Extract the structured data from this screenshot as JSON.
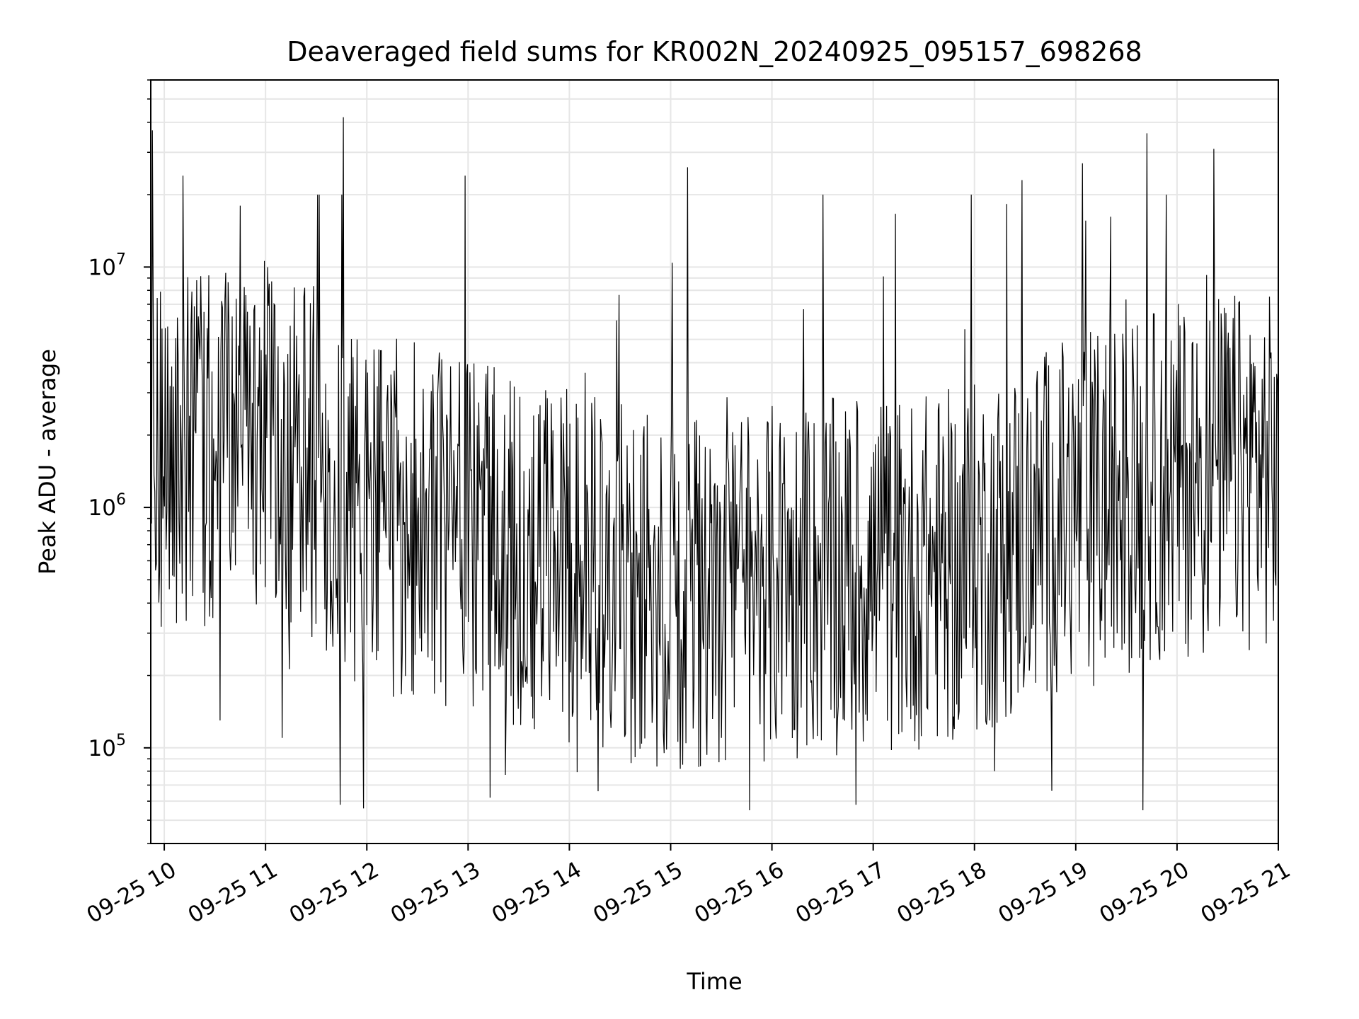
{
  "chart_data": {
    "type": "line",
    "title": "Deaveraged field sums for KR002N_20240925_095157_698268",
    "xlabel": "Time",
    "ylabel": "Peak ADU - average",
    "yscale": "log",
    "ylim": [
      40000,
      60000000
    ],
    "xlim": [
      "2024-09-25 09:52",
      "2024-09-25 21:00"
    ],
    "x_ticks": [
      "09-25 10",
      "09-25 11",
      "09-25 12",
      "09-25 13",
      "09-25 14",
      "09-25 15",
      "09-25 16",
      "09-25 17",
      "09-25 18",
      "09-25 19",
      "09-25 20",
      "09-25 21"
    ],
    "y_ticks": [
      {
        "base": "10",
        "exp": "5",
        "value": 100000
      },
      {
        "base": "10",
        "exp": "6",
        "value": 1000000
      },
      {
        "base": "10",
        "exp": "7",
        "value": 10000000
      }
    ],
    "grid": true,
    "line_color": "#000000",
    "grid_color": "#e6e6e6",
    "series": [
      {
        "name": "",
        "x": [
          "2024-09-25 09:52",
          "2024-09-25 09:53",
          "2024-09-25 09:59",
          "2024-09-25 10:11",
          "2024-09-25 10:33",
          "2024-09-25 10:37",
          "2024-09-25 10:45",
          "2024-09-25 10:58",
          "2024-09-25 11:10",
          "2024-09-25 11:25",
          "2024-09-25 11:44",
          "2024-09-25 11:46",
          "2024-09-25 11:58",
          "2024-09-25 12:10",
          "2024-09-25 12:30",
          "2024-09-25 12:58",
          "2024-09-25 13:13",
          "2024-09-25 13:43",
          "2024-09-25 14:17",
          "2024-09-25 14:28",
          "2024-09-25 15:10",
          "2024-09-25 15:30",
          "2024-09-25 15:50",
          "2024-09-25 16:18",
          "2024-09-25 16:30",
          "2024-09-25 16:50",
          "2024-09-25 17:28",
          "2024-09-25 17:58",
          "2024-09-25 18:12",
          "2024-09-25 18:28",
          "2024-09-25 19:04",
          "2024-09-25 19:25",
          "2024-09-25 19:40",
          "2024-09-25 19:42",
          "2024-09-25 20:10",
          "2024-09-25 20:22",
          "2024-09-25 20:45",
          "2024-09-25 21:00"
        ],
        "y": [
          1500000,
          37000000,
          900000,
          24000000,
          130000,
          3000000,
          18000000,
          1200000,
          110000,
          700000,
          58000,
          42000000,
          56000,
          800000,
          900000,
          24000000,
          62000,
          400000,
          66000,
          6000000,
          26000000,
          110000,
          800000,
          500000,
          20000000,
          58000,
          300000,
          20000000,
          80000,
          23000000,
          27000000,
          1500000,
          55000,
          36000000,
          1000000,
          31000000,
          4000000,
          1200000
        ]
      }
    ]
  }
}
